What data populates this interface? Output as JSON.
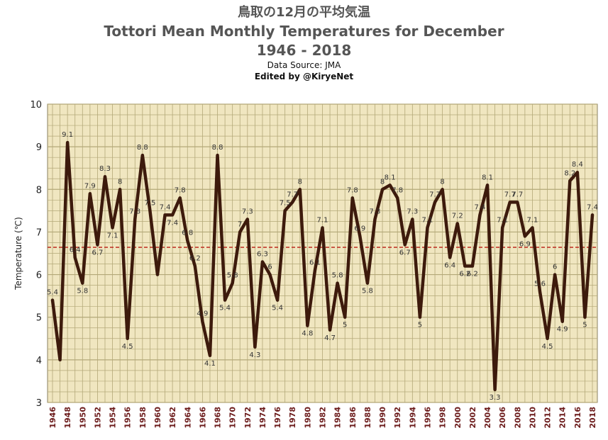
{
  "title_jp": "鳥取の12月の平均気温",
  "title": "Tottori Mean Monthly Temperatures for December",
  "years_range": "1946 - 2018",
  "source": "Data Source: JMA",
  "edited_by": "Edited by @KiryeNet",
  "colors": {
    "plot_bg": "#f0e6c0",
    "grid": "#b3a878",
    "line": "#3d1a0c",
    "mean_line": "#c0392b",
    "tick_label": "#6b1a1a"
  },
  "chart_data": {
    "type": "line",
    "ylabel": "Temperature (℃)",
    "xlabel": "",
    "ylim": [
      3,
      10
    ],
    "yticks": [
      3,
      4,
      5,
      6,
      7,
      8,
      9,
      10
    ],
    "xlim": [
      1946,
      2018
    ],
    "xtick_step": 2,
    "grid": true,
    "mean": 6.64,
    "data_labels": [
      "5.4",
      "",
      "9.1",
      "6.4",
      "5.8",
      "7.9",
      "6.7",
      "8.3",
      "7.1",
      "8",
      "4.5",
      "7.3",
      "8.8",
      "7.5",
      "",
      "7.4",
      "7.4",
      "7.8",
      "6.8",
      "6.2",
      "4.9",
      "4.1",
      "8.8",
      "5.4",
      "5.8",
      "7",
      "7.3",
      "4.3",
      "6.3",
      "6",
      "5.4",
      "7.5",
      "7.7",
      "8",
      "4.8",
      "6.1",
      "7.1",
      "4.7",
      "5.8",
      "5",
      "7.8",
      "6.9",
      "5.8",
      "7.3",
      "8",
      "8.1",
      "7.8",
      "6.7",
      "7.3",
      "5",
      "7.1",
      "7.7",
      "8",
      "6.4",
      "7.2",
      "6.2",
      "6.2",
      "7.4",
      "8.1",
      "3.3",
      "7.1",
      "7.7",
      "7.7",
      "6.9",
      "7.1",
      "5.6",
      "4.5",
      "6",
      "4.9",
      "8.2",
      "8.4",
      "5",
      "7.4"
    ],
    "x": [
      1946,
      1947,
      1948,
      1949,
      1950,
      1951,
      1952,
      1953,
      1954,
      1955,
      1956,
      1957,
      1958,
      1959,
      1960,
      1961,
      1962,
      1963,
      1964,
      1965,
      1966,
      1967,
      1968,
      1969,
      1970,
      1971,
      1972,
      1973,
      1974,
      1975,
      1976,
      1977,
      1978,
      1979,
      1980,
      1981,
      1982,
      1983,
      1984,
      1985,
      1986,
      1987,
      1988,
      1989,
      1990,
      1991,
      1992,
      1993,
      1994,
      1995,
      1996,
      1997,
      1998,
      1999,
      2000,
      2001,
      2002,
      2003,
      2004,
      2005,
      2006,
      2007,
      2008,
      2009,
      2010,
      2011,
      2012,
      2013,
      2014,
      2015,
      2016,
      2017,
      2018
    ],
    "series": [
      {
        "values": [
          5.4,
          4.0,
          9.1,
          6.4,
          5.8,
          7.9,
          6.7,
          8.3,
          7.1,
          8.0,
          4.5,
          7.3,
          8.8,
          7.5,
          6.0,
          7.4,
          7.4,
          7.8,
          6.8,
          6.2,
          4.9,
          4.1,
          8.8,
          5.4,
          5.8,
          7.0,
          7.3,
          4.3,
          6.3,
          6.0,
          5.4,
          7.5,
          7.7,
          8.0,
          4.8,
          6.1,
          7.1,
          4.7,
          5.8,
          5.0,
          7.8,
          6.9,
          5.8,
          7.3,
          8.0,
          8.1,
          7.8,
          6.7,
          7.3,
          5.0,
          7.1,
          7.7,
          8.0,
          6.4,
          7.2,
          6.2,
          6.2,
          7.4,
          8.1,
          3.3,
          7.1,
          7.7,
          7.7,
          6.9,
          7.1,
          5.6,
          4.5,
          6.0,
          4.9,
          8.2,
          8.4,
          5.0,
          7.4
        ]
      }
    ]
  }
}
